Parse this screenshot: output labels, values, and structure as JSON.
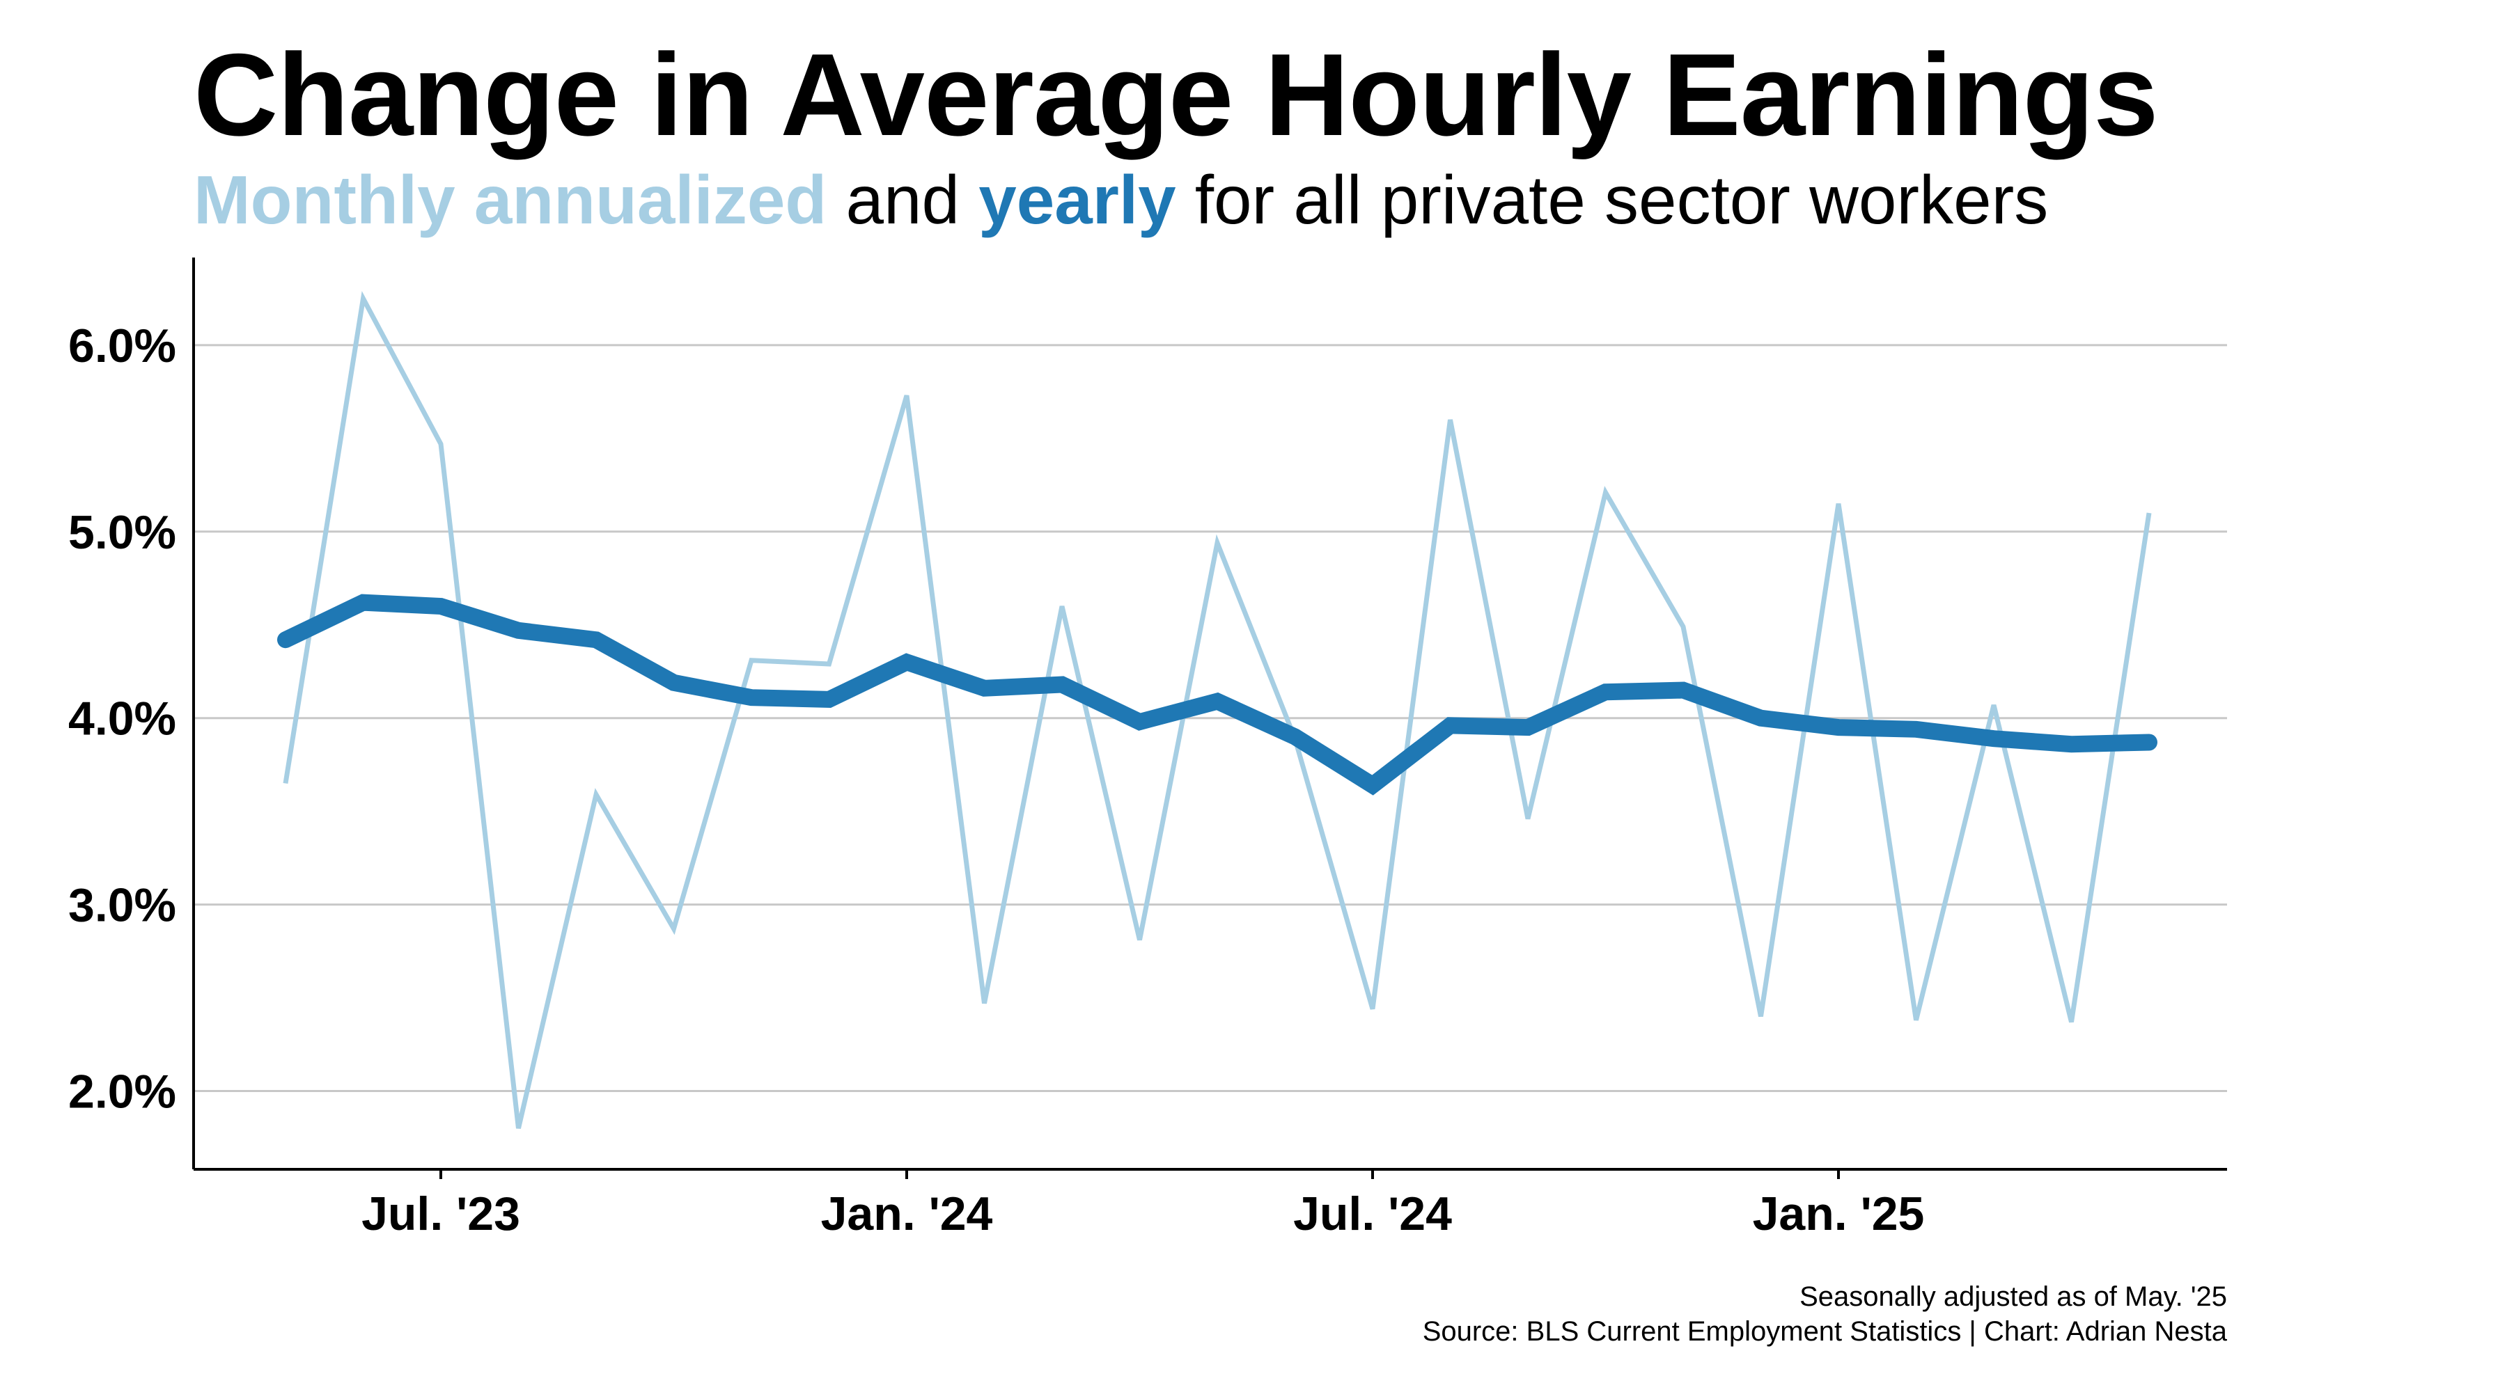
{
  "title": "Change in Average Hourly Earnings",
  "subtitle": {
    "monthly": "Monthly annualized",
    "and": " and ",
    "yearly": "yearly",
    "rest": " for all private sector workers"
  },
  "footer": {
    "note": "Seasonally adjusted as of May. '25",
    "source": "Source: BLS Current Employment Statistics | Chart: Adrian Nesta"
  },
  "colors": {
    "monthly": "#a6cee3",
    "yearly": "#1f78b4",
    "grid": "#c8c8c8",
    "axis": "#000000"
  },
  "chart_data": {
    "type": "line",
    "x": [
      "2023-05",
      "2023-06",
      "2023-07",
      "2023-08",
      "2023-09",
      "2023-10",
      "2023-11",
      "2023-12",
      "2024-01",
      "2024-02",
      "2024-03",
      "2024-04",
      "2024-05",
      "2024-06",
      "2024-07",
      "2024-08",
      "2024-09",
      "2024-10",
      "2024-11",
      "2024-12",
      "2025-01",
      "2025-02",
      "2025-03",
      "2025-04",
      "2025-05"
    ],
    "x_tick_labels": [
      {
        "x": "2023-07",
        "label": "Jul. '23"
      },
      {
        "x": "2024-01",
        "label": "Jan. '24"
      },
      {
        "x": "2024-07",
        "label": "Jul. '24"
      },
      {
        "x": "2025-01",
        "label": "Jan. '25"
      }
    ],
    "y_ticks": [
      2.0,
      3.0,
      4.0,
      5.0,
      6.0
    ],
    "y_tick_labels": [
      "2.0%",
      "3.0%",
      "4.0%",
      "5.0%",
      "6.0%"
    ],
    "ylim": [
      1.58,
      6.47
    ],
    "grid": "horizontal",
    "series": [
      {
        "name": "Monthly annualized",
        "color": "#a6cee3",
        "values": [
          3.65,
          6.25,
          5.47,
          1.8,
          3.59,
          2.87,
          4.31,
          4.29,
          5.73,
          2.47,
          4.6,
          2.81,
          4.94,
          3.89,
          2.44,
          5.6,
          3.46,
          5.21,
          4.49,
          2.4,
          5.15,
          2.38,
          4.07,
          2.37,
          5.1
        ]
      },
      {
        "name": "yearly",
        "color": "#1f78b4",
        "values": [
          4.42,
          4.62,
          4.6,
          4.47,
          4.42,
          4.19,
          4.11,
          4.1,
          4.3,
          4.16,
          4.18,
          3.98,
          4.09,
          3.9,
          3.64,
          3.96,
          3.95,
          4.14,
          4.15,
          4.0,
          3.95,
          3.94,
          3.89,
          3.86,
          3.87
        ]
      }
    ]
  }
}
